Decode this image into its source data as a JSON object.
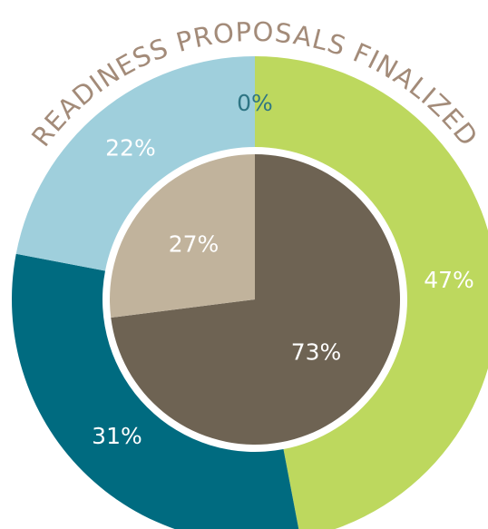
{
  "chart_data": [
    {
      "type": "donut",
      "title": "READINESS PROPOSALS FINALIZED",
      "values": [
        0,
        47,
        31,
        22
      ],
      "value_labels": [
        "0%",
        "47%",
        "31%",
        "22%"
      ],
      "colors": [
        "#2e7584",
        "#bdd85e",
        "#006b80",
        "#9fcfdc"
      ],
      "label_colors": [
        "#2e7584",
        "#ffffff",
        "#ffffff",
        "#ffffff"
      ]
    },
    {
      "type": "pie",
      "values": [
        73,
        27
      ],
      "value_labels": [
        "73%",
        "27%"
      ],
      "colors": [
        "#6e6353",
        "#c1b39c"
      ],
      "label_colors": [
        "#ffffff",
        "#ffffff"
      ]
    }
  ]
}
